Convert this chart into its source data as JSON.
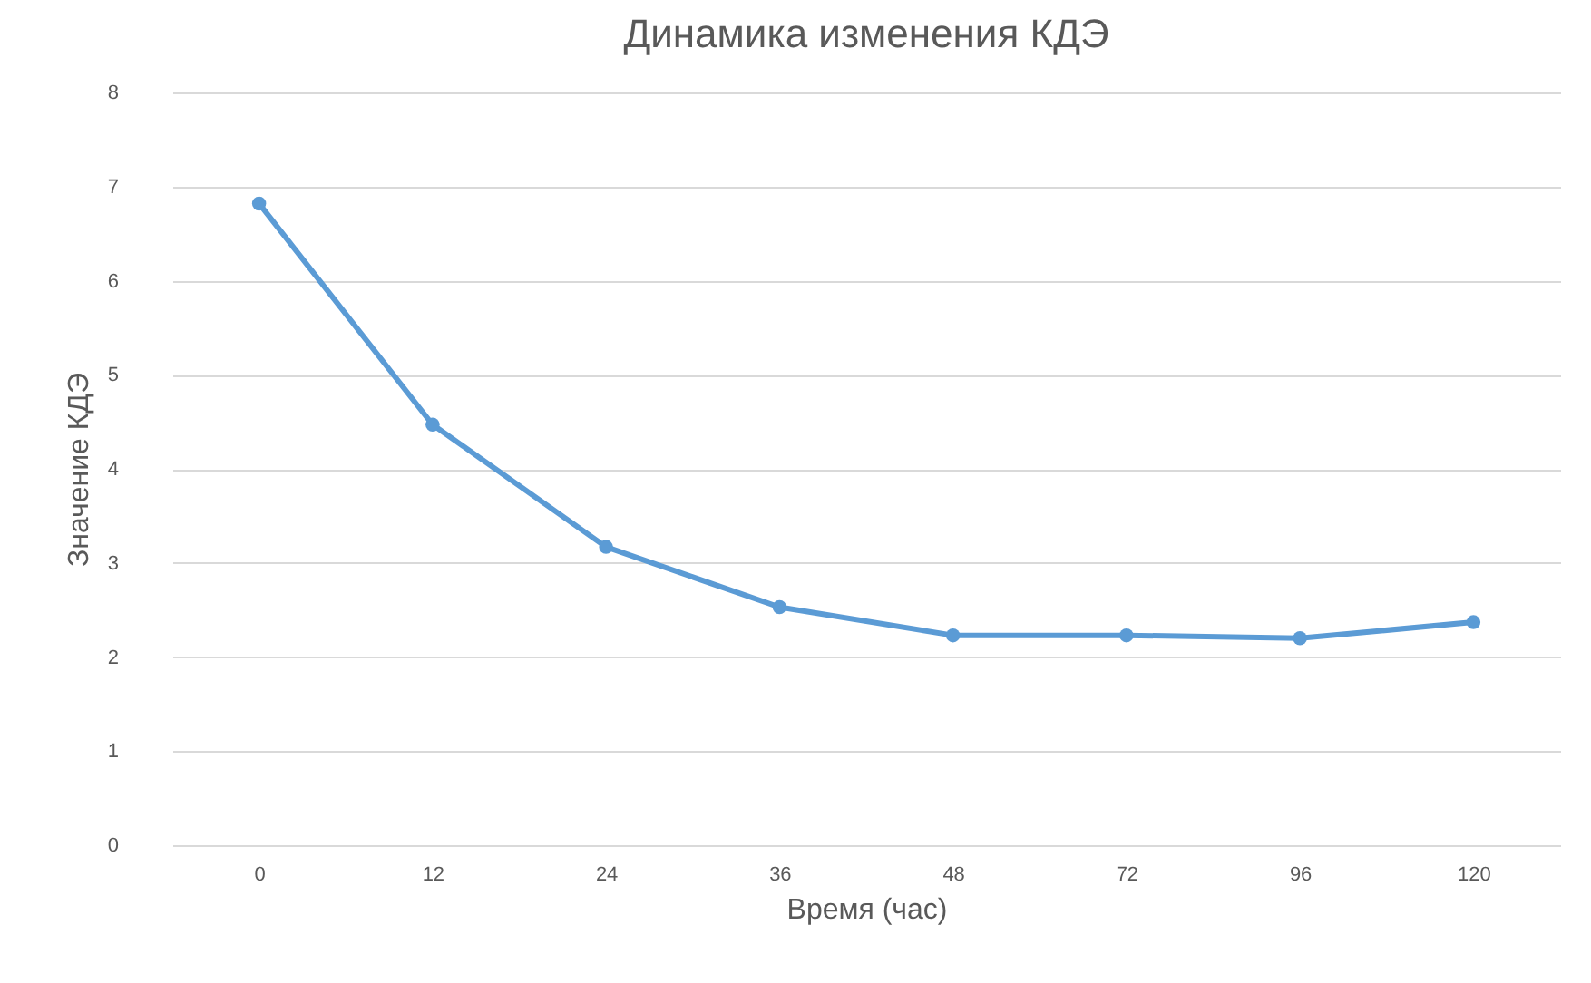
{
  "chart_data": {
    "type": "line",
    "title": "Динамика изменения КДЭ",
    "xlabel": "Время (час)",
    "ylabel": "Значение КДЭ",
    "categories": [
      "0",
      "12",
      "24",
      "36",
      "48",
      "72",
      "96",
      "120"
    ],
    "series": [
      {
        "color": "#5b9bd5",
        "values": [
          6.82,
          4.47,
          3.17,
          2.53,
          2.23,
          2.23,
          2.2,
          2.37
        ]
      }
    ],
    "ylim": [
      0,
      8
    ],
    "yticks": [
      0,
      1,
      2,
      3,
      4,
      5,
      6,
      7,
      8
    ],
    "grid": "y",
    "marker": "circle",
    "line_style": "solid"
  }
}
